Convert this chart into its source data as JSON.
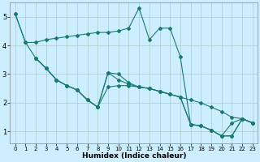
{
  "xlabel": "Humidex (Indice chaleur)",
  "bg_color": "#cceeff",
  "grid_color": "#aacccc",
  "line_color": "#1a7a6e",
  "xlim": [
    -0.5,
    23.5
  ],
  "ylim": [
    0.6,
    5.5
  ],
  "yticks": [
    1,
    2,
    3,
    4,
    5
  ],
  "xticks": [
    0,
    1,
    2,
    3,
    4,
    5,
    6,
    7,
    8,
    9,
    10,
    11,
    12,
    13,
    14,
    15,
    16,
    17,
    18,
    19,
    20,
    21,
    22,
    23
  ],
  "series": [
    {
      "x": [
        0,
        1,
        2,
        3,
        4,
        5,
        6,
        7,
        8,
        9,
        10,
        11,
        12,
        13,
        14,
        15,
        16,
        17,
        18,
        19,
        20,
        21,
        22,
        23
      ],
      "y": [
        5.1,
        4.1,
        4.1,
        4.2,
        4.25,
        4.3,
        4.35,
        4.4,
        4.45,
        4.45,
        4.5,
        4.6,
        5.3,
        4.2,
        4.6,
        4.6,
        3.6,
        1.25,
        1.2,
        1.05,
        0.85,
        1.3,
        1.45,
        1.3
      ]
    },
    {
      "x": [
        0,
        1,
        2,
        3,
        4,
        5,
        6,
        7,
        8,
        9,
        10,
        11,
        12,
        13,
        14,
        15,
        16,
        17,
        18,
        19,
        20,
        21,
        22,
        23
      ],
      "y": [
        5.1,
        4.1,
        3.55,
        3.2,
        2.8,
        2.6,
        2.45,
        2.1,
        1.85,
        2.55,
        2.6,
        2.6,
        2.55,
        2.5,
        2.4,
        2.3,
        2.2,
        2.1,
        2.0,
        1.85,
        1.7,
        1.5,
        1.45,
        1.3
      ]
    },
    {
      "x": [
        2,
        3,
        4,
        5,
        6,
        7,
        8,
        9,
        10,
        11,
        12,
        13,
        14,
        15,
        16,
        17,
        18,
        19,
        20,
        21,
        22,
        23
      ],
      "y": [
        3.55,
        3.2,
        2.8,
        2.6,
        2.45,
        2.1,
        1.85,
        3.05,
        3.0,
        2.7,
        2.55,
        2.5,
        2.4,
        2.3,
        2.2,
        1.25,
        1.2,
        1.05,
        0.85,
        0.85,
        1.45,
        1.3
      ]
    },
    {
      "x": [
        2,
        3,
        4,
        5,
        6,
        7,
        8,
        9,
        10,
        11,
        12,
        13,
        14,
        15,
        16,
        17,
        18,
        19,
        20,
        21,
        22,
        23
      ],
      "y": [
        3.55,
        3.2,
        2.8,
        2.6,
        2.45,
        2.1,
        1.85,
        3.05,
        2.8,
        2.65,
        2.55,
        2.5,
        2.4,
        2.3,
        2.2,
        1.25,
        1.2,
        1.05,
        0.85,
        0.85,
        1.45,
        1.3
      ]
    }
  ]
}
